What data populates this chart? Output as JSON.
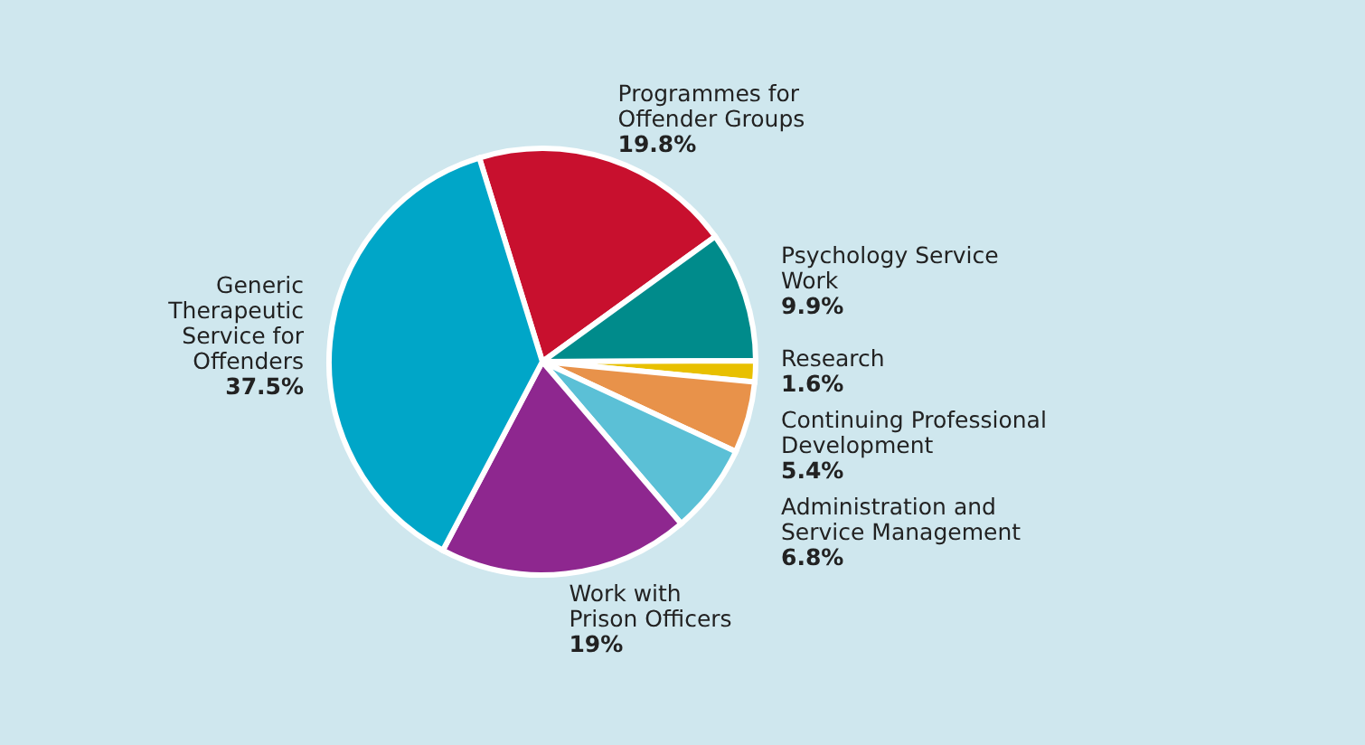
{
  "chart_data": {
    "type": "pie",
    "categories": [
      "Programmes for\nOffender Groups",
      "Psychology Service\nWork",
      "Research",
      "Continuing Professional\nDevelopment",
      "Administration and\nService Management",
      "Work with\nPrison Officers",
      "Generic\nTherapeutic\nService for\nOffenders"
    ],
    "values": [
      19.8,
      9.9,
      1.6,
      5.4,
      6.8,
      19,
      37.5
    ],
    "value_labels": [
      "19.8%",
      "9.9%",
      "1.6%",
      "5.4%",
      "6.8%",
      "19%",
      "37.5%"
    ],
    "colors": [
      "#c8102e",
      "#008b8b",
      "#e8c000",
      "#e8924a",
      "#5bc0d6",
      "#8e278f",
      "#00a6c8"
    ],
    "data_labels": true
  }
}
